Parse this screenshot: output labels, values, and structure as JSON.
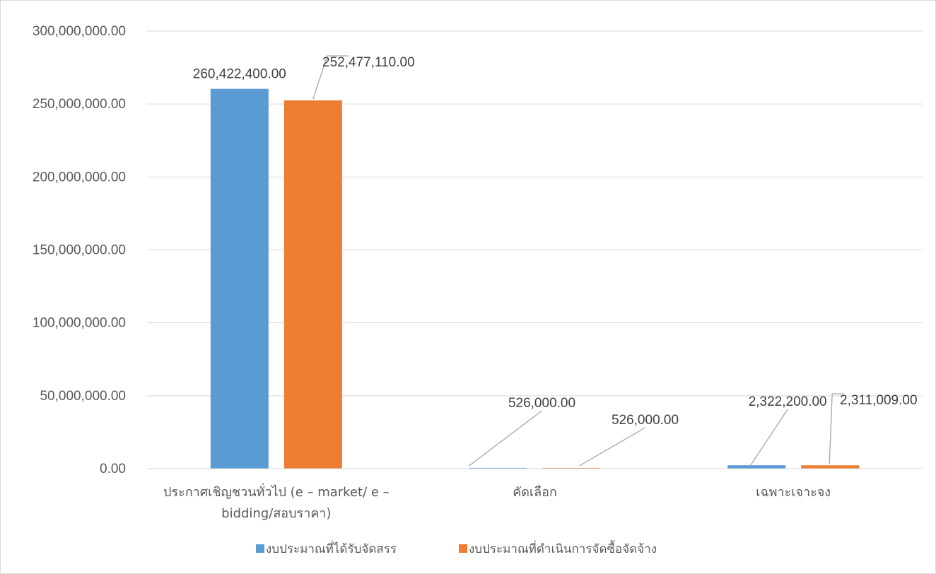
{
  "chart_data": {
    "type": "bar",
    "categories": [
      [
        "ประกาศเชิญชวนทั่วไป  (e – market/ e –",
        "bidding/สอบราคา)"
      ],
      [
        "คัดเลือก"
      ],
      [
        "เฉพาะเจาะจง"
      ]
    ],
    "series": [
      {
        "name": "งบประมาณที่ได้รับจัดสรร",
        "color": "#5b9bd5",
        "values": [
          260422400.0,
          526000.0,
          2322200.0
        ],
        "labels": [
          "260,422,400.00",
          "526,000.00",
          "2,322,200.00"
        ]
      },
      {
        "name": "งบประมาณที่ดำเนินการจัดซื้อจัดจ้าง",
        "color": "#ed7d31",
        "values": [
          252477110.0,
          526000.0,
          2311009.0
        ],
        "labels": [
          "252,477,110.00",
          "526,000.00",
          "2,311,009.00"
        ]
      }
    ],
    "ylim": [
      0,
      300000000
    ],
    "yticks": [
      0,
      50000000,
      100000000,
      150000000,
      200000000,
      250000000,
      300000000
    ],
    "ytick_labels": [
      "0.00",
      "50,000,000.00",
      "100,000,000.00",
      "150,000,000.00",
      "200,000,000.00",
      "250,000,000.00",
      "300,000,000.00"
    ],
    "grid": true,
    "legend": "bottom"
  }
}
